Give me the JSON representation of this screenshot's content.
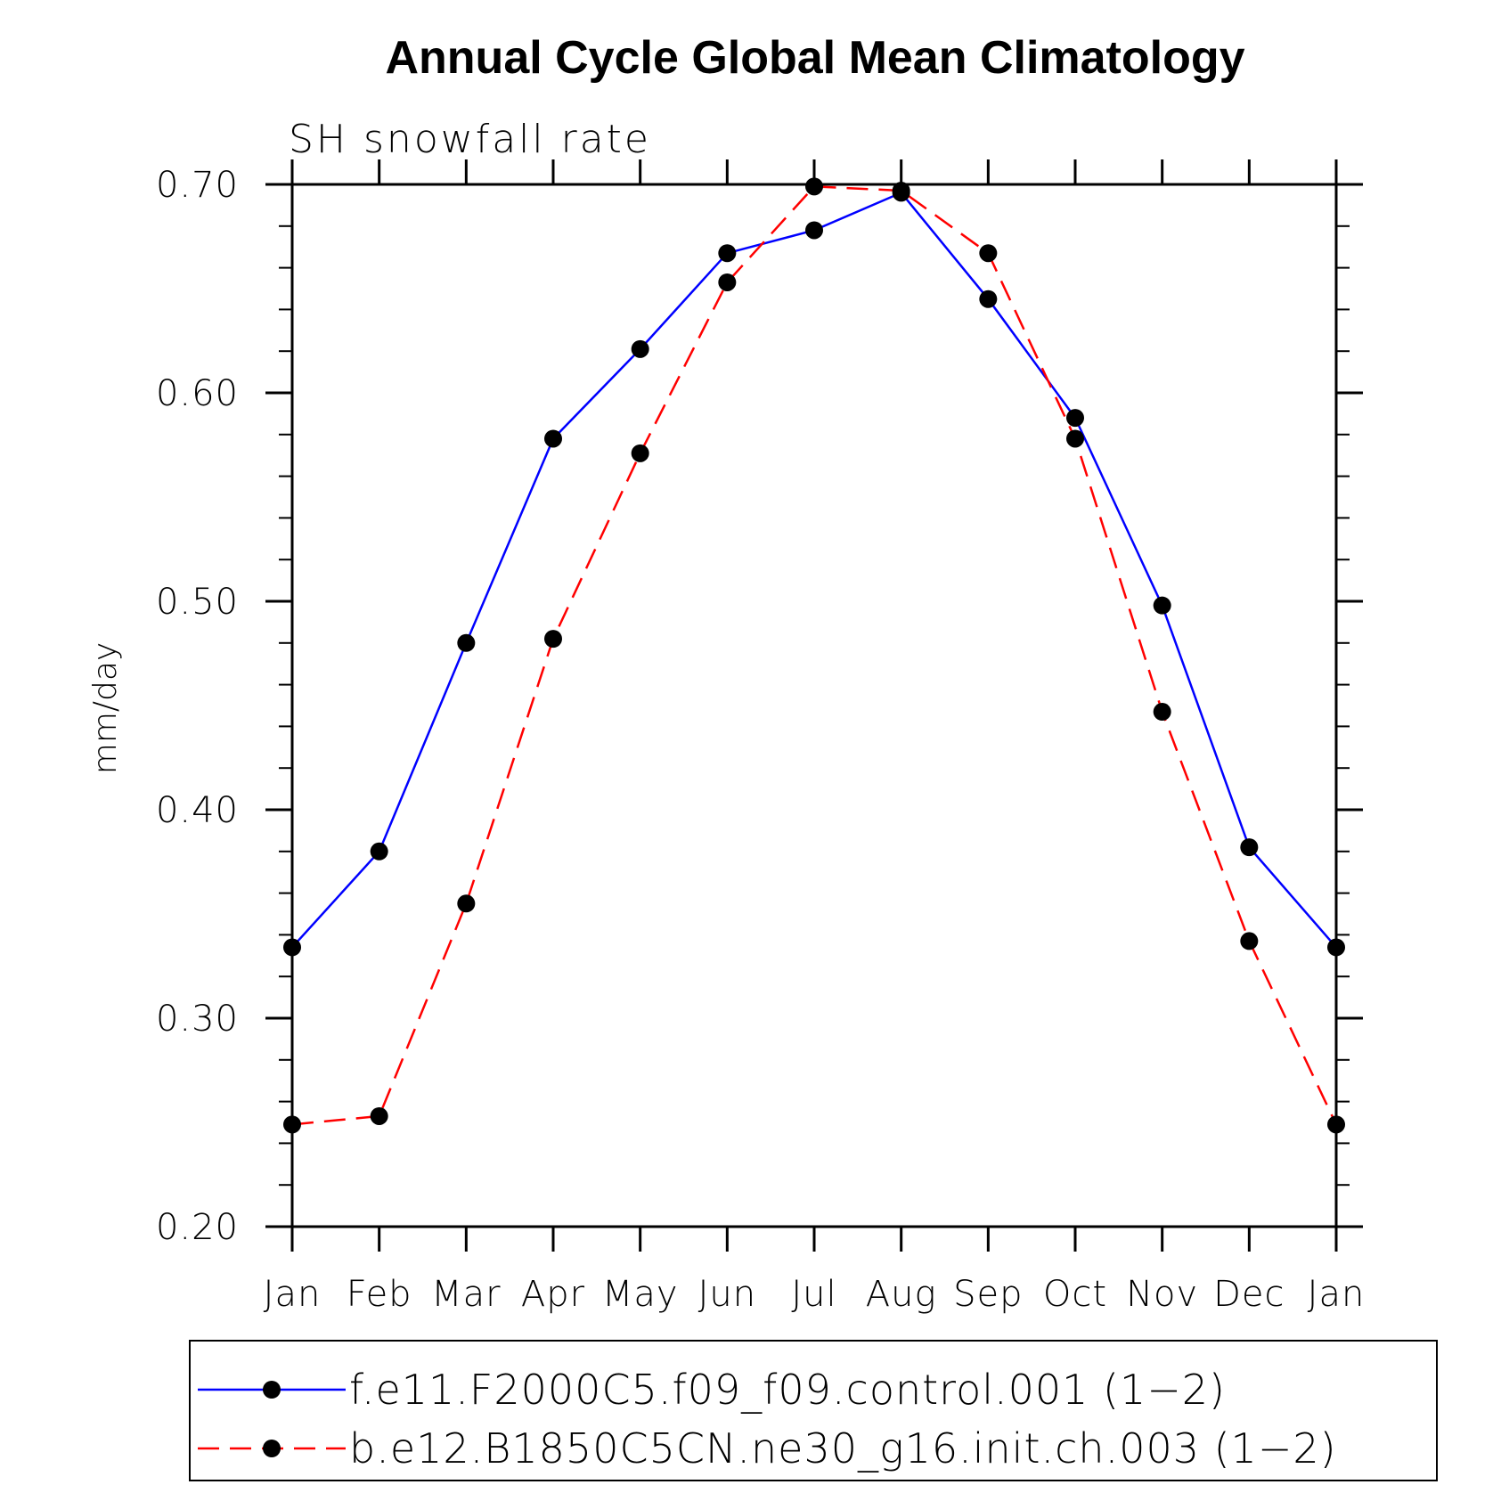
{
  "chart_data": {
    "type": "line",
    "title": "Annual Cycle Global Mean Climatology",
    "subtitle": "SH snowfall rate",
    "xlabel": "",
    "ylabel": "mm/day",
    "categories": [
      "Jan",
      "Feb",
      "Mar",
      "Apr",
      "May",
      "Jun",
      "Jul",
      "Aug",
      "Sep",
      "Oct",
      "Nov",
      "Dec",
      "Jan"
    ],
    "ylim": [
      0.2,
      0.7
    ],
    "yticks": [
      "0.20",
      "0.30",
      "0.40",
      "0.50",
      "0.60",
      "0.70"
    ],
    "yticks_values": [
      0.2,
      0.3,
      0.4,
      0.5,
      0.6,
      0.7
    ],
    "grid": false,
    "legend_position": "bottom",
    "series": [
      {
        "name": "f.e11.F2000C5.f09_f09.control.001 (1−2)",
        "color": "#0000ff",
        "line_style": "solid",
        "marker": "filled-circle",
        "values": [
          0.334,
          0.38,
          0.48,
          0.578,
          0.621,
          0.667,
          0.678,
          0.696,
          0.645,
          0.588,
          0.498,
          0.382,
          0.334
        ]
      },
      {
        "name": "b.e12.B1850C5CN.ne30_g16.init.ch.003 (1−2)",
        "color": "#ff0000",
        "line_style": "dashed",
        "marker": "filled-circle",
        "values": [
          0.249,
          0.253,
          0.355,
          0.482,
          0.571,
          0.653,
          0.699,
          0.697,
          0.667,
          0.578,
          0.447,
          0.337,
          0.249
        ]
      }
    ]
  }
}
